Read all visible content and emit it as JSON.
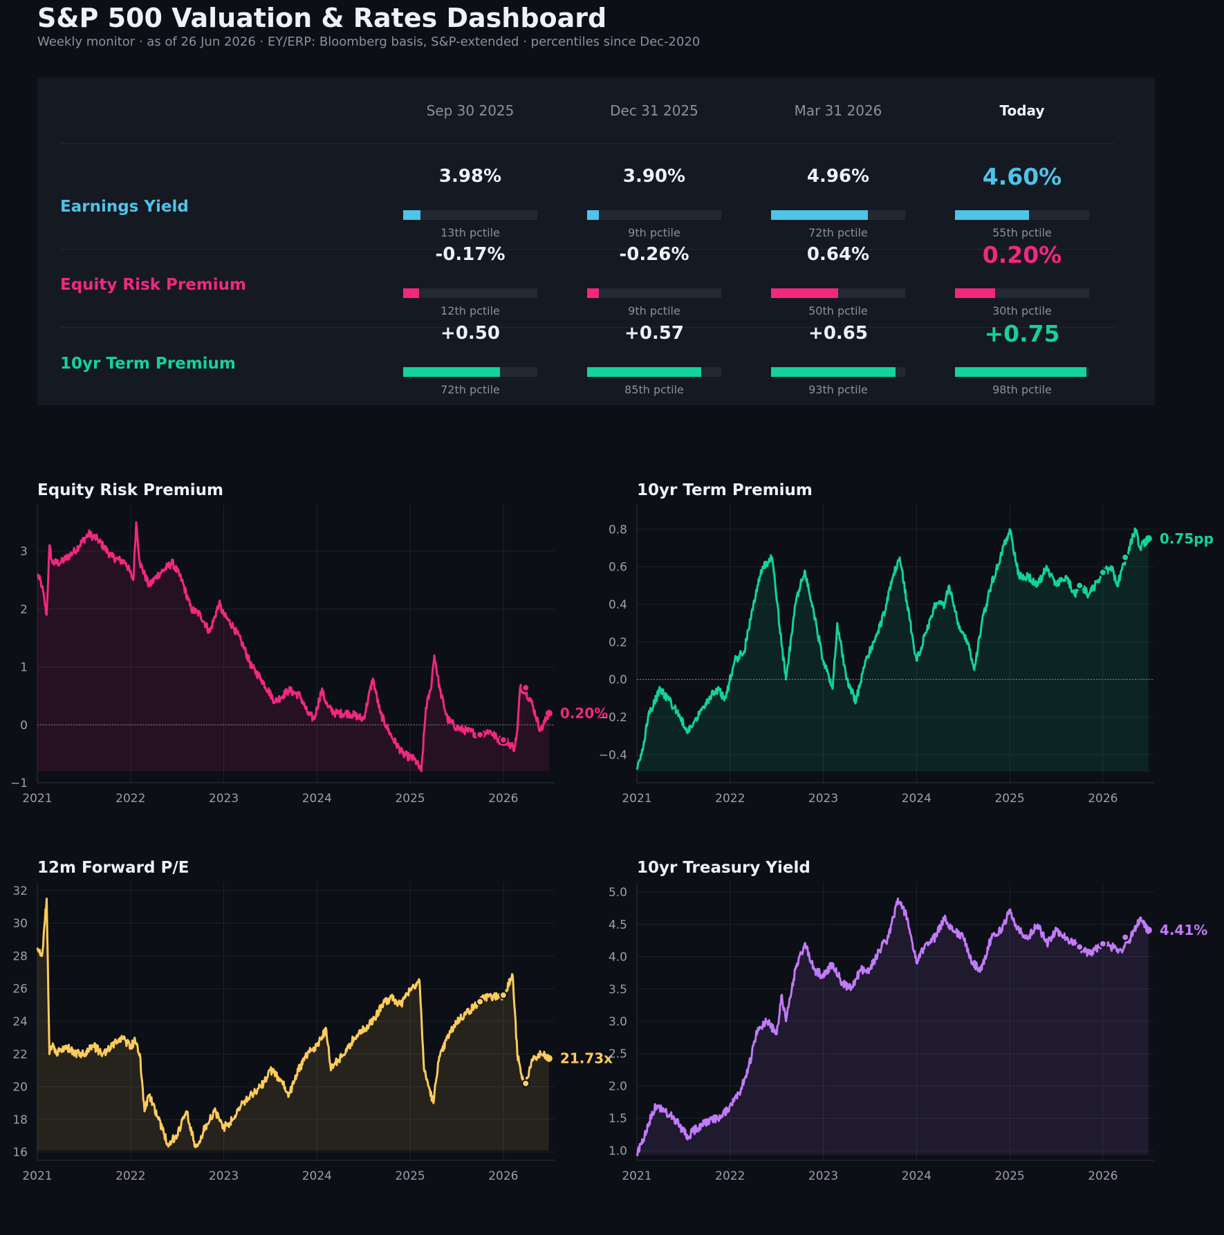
{
  "header": {
    "title": "S&P 500 Valuation & Rates Dashboard",
    "subtitle": "Weekly monitor  ·  as of 26 Jun 2026  ·  EY/ERP: Bloomberg basis, S&P-extended  ·  percentiles since Dec-2020"
  },
  "summary_table": {
    "columns": [
      "Sep 30 2025",
      "Dec 31 2025",
      "Mar 31 2026",
      "Today"
    ],
    "rows": [
      {
        "label": "Earnings Yield",
        "color": "#4fc3e8",
        "values": [
          "3.98%",
          "3.90%",
          "4.96%",
          "4.60%"
        ],
        "percentile_labels": [
          "13th pctile",
          "9th pctile",
          "72th pctile",
          "55th pctile"
        ],
        "percentiles": [
          13,
          9,
          72,
          55
        ]
      },
      {
        "label": "Equity Risk Premium",
        "color": "#f2287f",
        "values": [
          "-0.17%",
          "-0.26%",
          "0.64%",
          "0.20%"
        ],
        "percentile_labels": [
          "12th pctile",
          "9th pctile",
          "50th pctile",
          "30th pctile"
        ],
        "percentiles": [
          12,
          9,
          50,
          30
        ]
      },
      {
        "label": "10yr Term Premium",
        "color": "#12d39b",
        "values": [
          "+0.50",
          "+0.57",
          "+0.65",
          "+0.75"
        ],
        "percentile_labels": [
          "72th pctile",
          "85th pctile",
          "93th pctile",
          "98th pctile"
        ],
        "percentiles": [
          72,
          85,
          93,
          98
        ]
      }
    ]
  },
  "chart_data": [
    {
      "type": "line",
      "title": "Equity Risk Premium",
      "color": "#f2287f",
      "end_label": "0.20%",
      "ylim": [
        -1,
        3.8
      ],
      "yticks": [
        -1,
        0,
        1,
        2,
        3
      ],
      "ytick_labels": [
        "−1",
        "0",
        "1",
        "2",
        "3"
      ],
      "xlim": [
        2021.0,
        2026.55
      ],
      "xticks": [
        2021,
        2022,
        2023,
        2024,
        2025,
        2026
      ],
      "xtick_labels": [
        "2021",
        "2022",
        "2023",
        "2024",
        "2025",
        "2026"
      ],
      "zero_line": true,
      "fill_base": -0.8,
      "grid": true,
      "x": [
        2021.0,
        2021.05,
        2021.1,
        2021.13,
        2021.16,
        2021.25,
        2021.4,
        2021.55,
        2021.65,
        2021.8,
        2021.95,
        2022.03,
        2022.06,
        2022.1,
        2022.2,
        2022.3,
        2022.45,
        2022.55,
        2022.65,
        2022.75,
        2022.85,
        2022.95,
        2023.0,
        2023.1,
        2023.2,
        2023.3,
        2023.4,
        2023.55,
        2023.7,
        2023.82,
        2023.9,
        2023.97,
        2024.05,
        2024.12,
        2024.2,
        2024.35,
        2024.5,
        2024.6,
        2024.68,
        2024.8,
        2024.92,
        2025.05,
        2025.12,
        2025.17,
        2025.22,
        2025.26,
        2025.32,
        2025.4,
        2025.5,
        2025.6,
        2025.75,
        2025.85,
        2025.95,
        2026.05,
        2026.12,
        2026.15,
        2026.18,
        2026.23,
        2026.3,
        2026.4,
        2026.49
      ],
      "y": [
        2.6,
        2.4,
        1.9,
        3.1,
        2.8,
        2.8,
        3.0,
        3.3,
        3.2,
        2.9,
        2.8,
        2.5,
        3.5,
        2.8,
        2.4,
        2.6,
        2.8,
        2.5,
        2.0,
        1.9,
        1.6,
        2.1,
        1.9,
        1.7,
        1.4,
        1.0,
        0.8,
        0.4,
        0.6,
        0.5,
        0.2,
        0.1,
        0.6,
        0.3,
        0.2,
        0.2,
        0.1,
        0.8,
        0.2,
        -0.2,
        -0.5,
        -0.6,
        -0.8,
        0.3,
        0.6,
        1.2,
        0.6,
        0.1,
        -0.05,
        -0.1,
        -0.17,
        -0.1,
        -0.26,
        -0.3,
        -0.4,
        -0.1,
        0.64,
        0.6,
        0.4,
        -0.1,
        0.2
      ],
      "markers": [
        [
          2025.75,
          -0.17
        ],
        [
          2026.0,
          -0.26
        ],
        [
          2026.24,
          0.64
        ],
        [
          2026.49,
          0.2
        ]
      ]
    },
    {
      "type": "line",
      "title": "10yr Term Premium",
      "color": "#12d39b",
      "end_label": "0.75pp",
      "ylim": [
        -0.55,
        0.93
      ],
      "yticks": [
        -0.4,
        -0.2,
        0.0,
        0.2,
        0.4,
        0.6,
        0.8
      ],
      "ytick_labels": [
        "−0.4",
        "−0.2",
        "0.0",
        "0.2",
        "0.4",
        "0.6",
        "0.8"
      ],
      "xlim": [
        2021.0,
        2026.55
      ],
      "xticks": [
        2021,
        2022,
        2023,
        2024,
        2025,
        2026
      ],
      "xtick_labels": [
        "2021",
        "2022",
        "2023",
        "2024",
        "2025",
        "2026"
      ],
      "zero_line": true,
      "fill_base": -0.49,
      "grid": true,
      "x": [
        2021.0,
        2021.05,
        2021.12,
        2021.25,
        2021.4,
        2021.55,
        2021.7,
        2021.85,
        2021.95,
        2022.05,
        2022.15,
        2022.25,
        2022.35,
        2022.45,
        2022.55,
        2022.6,
        2022.7,
        2022.8,
        2022.9,
        2023.0,
        2023.1,
        2023.15,
        2023.25,
        2023.35,
        2023.45,
        2023.55,
        2023.65,
        2023.75,
        2023.82,
        2023.9,
        2024.0,
        2024.1,
        2024.2,
        2024.3,
        2024.35,
        2024.45,
        2024.55,
        2024.62,
        2024.7,
        2024.8,
        2024.9,
        2025.0,
        2025.1,
        2025.2,
        2025.3,
        2025.4,
        2025.5,
        2025.6,
        2025.7,
        2025.75,
        2025.85,
        2026.0,
        2026.1,
        2026.15,
        2026.25,
        2026.35,
        2026.4,
        2026.49
      ],
      "y": [
        -0.48,
        -0.4,
        -0.2,
        -0.05,
        -0.15,
        -0.28,
        -0.15,
        -0.05,
        -0.1,
        0.1,
        0.15,
        0.4,
        0.6,
        0.65,
        0.2,
        0.0,
        0.4,
        0.58,
        0.35,
        0.1,
        -0.05,
        0.3,
        0.0,
        -0.12,
        0.1,
        0.2,
        0.35,
        0.55,
        0.65,
        0.4,
        0.1,
        0.25,
        0.4,
        0.4,
        0.5,
        0.3,
        0.2,
        0.05,
        0.3,
        0.5,
        0.65,
        0.8,
        0.55,
        0.55,
        0.5,
        0.6,
        0.5,
        0.55,
        0.45,
        0.5,
        0.45,
        0.57,
        0.6,
        0.5,
        0.65,
        0.8,
        0.7,
        0.75
      ],
      "markers": [
        [
          2025.75,
          0.5
        ],
        [
          2026.0,
          0.57
        ],
        [
          2026.24,
          0.65
        ],
        [
          2026.49,
          0.75
        ]
      ]
    },
    {
      "type": "line",
      "title": "12m Forward P/E",
      "color": "#ffcc5c",
      "end_label": "21.73x",
      "ylim": [
        15.5,
        32.5
      ],
      "yticks": [
        16,
        18,
        20,
        22,
        24,
        26,
        28,
        30,
        32
      ],
      "ytick_labels": [
        "16",
        "18",
        "20",
        "22",
        "24",
        "26",
        "28",
        "30",
        "32"
      ],
      "xlim": [
        2021.0,
        2026.55
      ],
      "xticks": [
        2021,
        2022,
        2023,
        2024,
        2025,
        2026
      ],
      "xtick_labels": [
        "2021",
        "2022",
        "2023",
        "2024",
        "2025",
        "2026"
      ],
      "zero_line": false,
      "fill_base": 16.1,
      "grid": true,
      "x": [
        2021.0,
        2021.05,
        2021.1,
        2021.13,
        2021.16,
        2021.2,
        2021.3,
        2021.4,
        2021.5,
        2021.6,
        2021.7,
        2021.8,
        2021.9,
        2022.0,
        2022.05,
        2022.1,
        2022.15,
        2022.2,
        2022.3,
        2022.4,
        2022.5,
        2022.6,
        2022.7,
        2022.8,
        2022.9,
        2023.0,
        2023.1,
        2023.2,
        2023.3,
        2023.4,
        2023.5,
        2023.6,
        2023.7,
        2023.8,
        2023.9,
        2024.0,
        2024.1,
        2024.15,
        2024.2,
        2024.3,
        2024.4,
        2024.5,
        2024.6,
        2024.7,
        2024.8,
        2024.9,
        2025.0,
        2025.1,
        2025.15,
        2025.2,
        2025.25,
        2025.3,
        2025.4,
        2025.5,
        2025.6,
        2025.75,
        2025.8,
        2025.9,
        2026.0,
        2026.1,
        2026.15,
        2026.2,
        2026.24,
        2026.3,
        2026.4,
        2026.49
      ],
      "y": [
        28.5,
        28.0,
        31.5,
        22.0,
        22.5,
        22.0,
        22.5,
        22.0,
        22.0,
        22.5,
        22.0,
        22.5,
        23.0,
        22.5,
        22.8,
        22.0,
        18.5,
        19.5,
        18.0,
        16.5,
        17.0,
        18.5,
        16.3,
        17.5,
        18.5,
        17.5,
        18.0,
        19.0,
        19.5,
        20.0,
        21.0,
        20.5,
        19.5,
        21.0,
        22.0,
        22.5,
        23.5,
        21.0,
        21.5,
        22.0,
        23.0,
        23.5,
        24.0,
        25.0,
        25.5,
        25.0,
        26.0,
        26.5,
        21.0,
        20.0,
        19.0,
        21.5,
        23.0,
        24.0,
        24.5,
        25.2,
        25.5,
        25.5,
        25.6,
        26.8,
        22.0,
        20.5,
        20.2,
        21.5,
        22.0,
        21.73
      ],
      "markers": [
        [
          2025.75,
          25.2
        ],
        [
          2026.0,
          25.6
        ],
        [
          2026.24,
          20.2
        ],
        [
          2026.49,
          21.73
        ]
      ]
    },
    {
      "type": "line",
      "title": "10yr Treasury Yield",
      "color": "#c17af8",
      "end_label": "4.41%",
      "ylim": [
        0.85,
        5.15
      ],
      "yticks": [
        1.0,
        1.5,
        2.0,
        2.5,
        3.0,
        3.5,
        4.0,
        4.5,
        5.0
      ],
      "ytick_labels": [
        "1.0",
        "1.5",
        "2.0",
        "2.5",
        "3.0",
        "3.5",
        "4.0",
        "4.5",
        "5.0"
      ],
      "xlim": [
        2021.0,
        2026.55
      ],
      "xticks": [
        2021,
        2022,
        2023,
        2024,
        2025,
        2026
      ],
      "xtick_labels": [
        "2021",
        "2022",
        "2023",
        "2024",
        "2025",
        "2026"
      ],
      "zero_line": false,
      "fill_base": 0.93,
      "grid": true,
      "x": [
        2021.0,
        2021.05,
        2021.12,
        2021.2,
        2021.3,
        2021.4,
        2021.5,
        2021.55,
        2021.6,
        2021.7,
        2021.8,
        2021.9,
        2022.0,
        2022.1,
        2022.2,
        2022.3,
        2022.4,
        2022.5,
        2022.55,
        2022.6,
        2022.7,
        2022.8,
        2022.9,
        2023.0,
        2023.1,
        2023.2,
        2023.3,
        2023.4,
        2023.5,
        2023.6,
        2023.7,
        2023.8,
        2023.9,
        2024.0,
        2024.1,
        2024.2,
        2024.3,
        2024.4,
        2024.5,
        2024.6,
        2024.7,
        2024.8,
        2024.9,
        2025.0,
        2025.1,
        2025.2,
        2025.3,
        2025.4,
        2025.5,
        2025.6,
        2025.75,
        2025.85,
        2026.0,
        2026.1,
        2026.2,
        2026.3,
        2026.4,
        2026.49
      ],
      "y": [
        0.95,
        1.1,
        1.4,
        1.7,
        1.6,
        1.5,
        1.3,
        1.2,
        1.3,
        1.4,
        1.5,
        1.5,
        1.7,
        1.9,
        2.3,
        2.9,
        3.0,
        2.8,
        3.4,
        3.0,
        3.8,
        4.2,
        3.8,
        3.7,
        3.9,
        3.6,
        3.5,
        3.8,
        3.8,
        4.1,
        4.3,
        4.9,
        4.6,
        3.9,
        4.2,
        4.3,
        4.6,
        4.4,
        4.3,
        3.9,
        3.8,
        4.3,
        4.4,
        4.7,
        4.4,
        4.3,
        4.5,
        4.2,
        4.4,
        4.3,
        4.15,
        4.05,
        4.2,
        4.15,
        4.1,
        4.3,
        4.6,
        4.41
      ],
      "markers": [
        [
          2025.75,
          4.15
        ],
        [
          2026.0,
          4.2
        ],
        [
          2026.24,
          4.3
        ],
        [
          2026.49,
          4.41
        ]
      ]
    }
  ]
}
